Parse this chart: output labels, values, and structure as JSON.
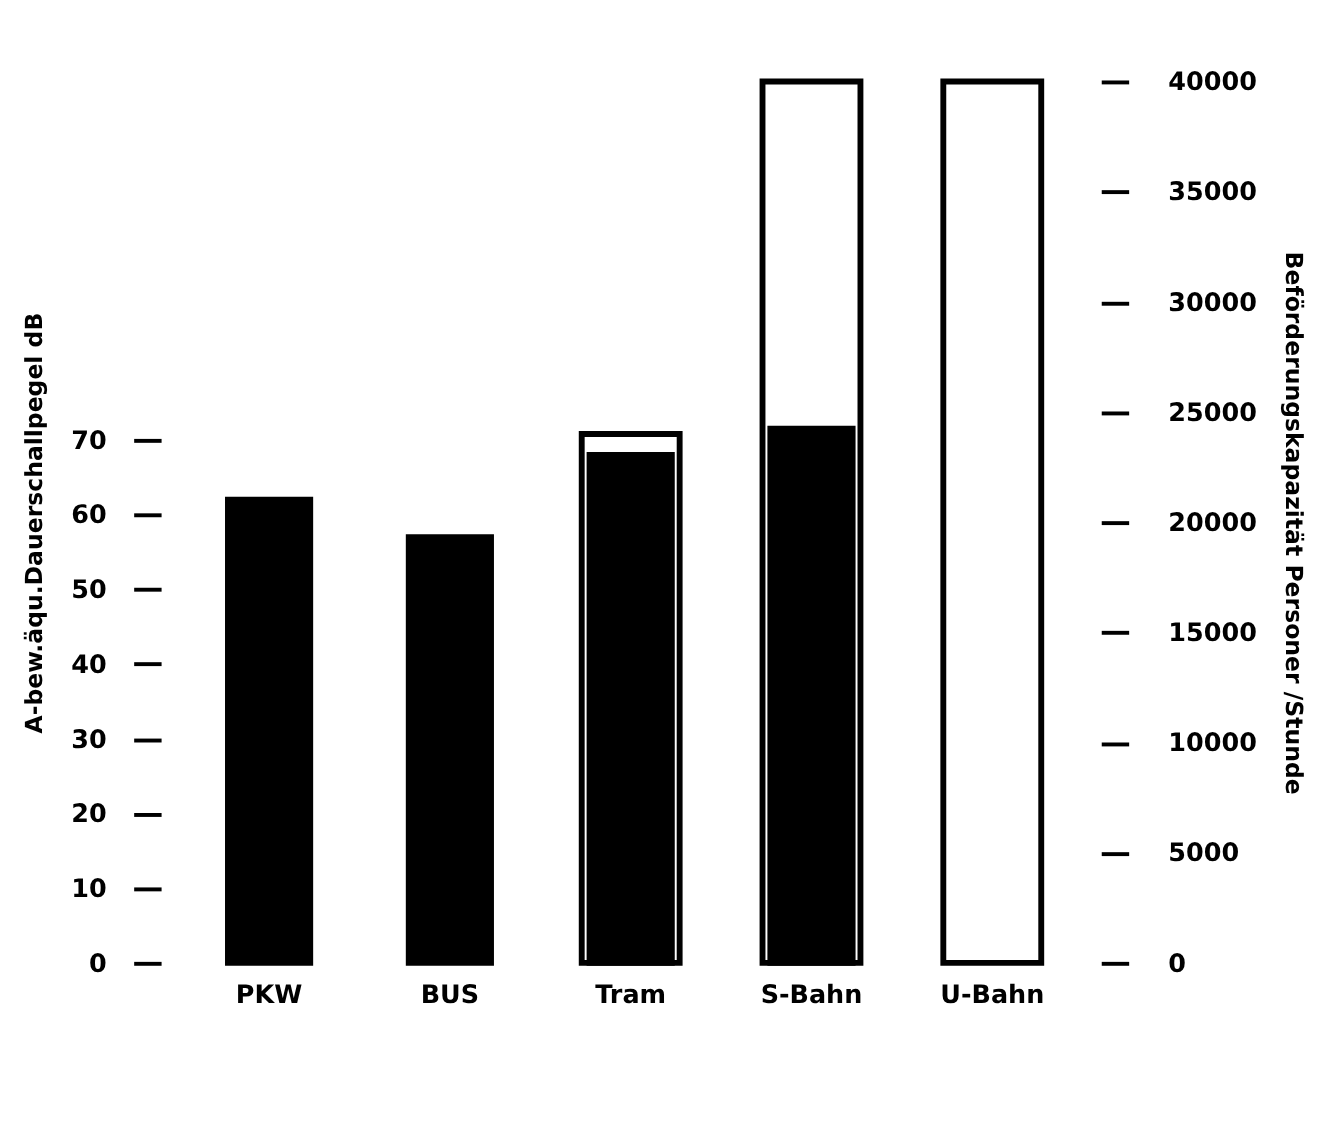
{
  "chart_data": {
    "type": "bar",
    "categories": [
      "PKW",
      "BUS",
      "Tram",
      "S-Bahn",
      "U-Bahn"
    ],
    "ylabel": "A-bew.äqu.Dauerschallpegel  dB",
    "y2label": "Beförderungskapazität  Personer /Stunde",
    "series": [
      {
        "axis": "y2",
        "color": "#ffffff",
        "values": [
          null,
          null,
          24000,
          40000,
          40000
        ]
      },
      {
        "color": "#000000",
        "values": [
          62,
          57,
          68,
          71.5,
          null
        ]
      }
    ],
    "ylim": [
      0,
      118
    ],
    "yticks": [
      0,
      10,
      20,
      30,
      40,
      50,
      60,
      70
    ],
    "y2lim": [
      0,
      40000
    ],
    "y2ticks": [
      0,
      5000,
      10000,
      15000,
      20000,
      25000,
      30000,
      35000,
      40000
    ],
    "grid": false
  }
}
